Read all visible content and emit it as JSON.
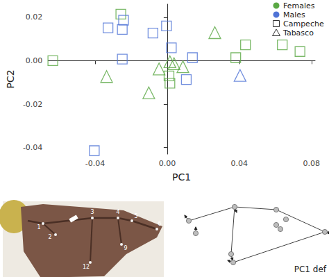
{
  "chart_data": {
    "type": "scatter",
    "x_label": "PC1",
    "y_label": "PC2",
    "xlim": [
      -0.066,
      0.082
    ],
    "xticks": [
      {
        "value": -0.04,
        "label": "-0.04"
      },
      {
        "value": 0,
        "label": "0.00"
      },
      {
        "value": 0.04,
        "label": "0.04"
      },
      {
        "value": 0.08,
        "label": "0.08"
      }
    ],
    "ylim": [
      -0.043,
      0.026
    ],
    "yticks": [
      {
        "value": -0.04,
        "label": "-0.04"
      },
      {
        "value": -0.02,
        "label": "-0.02"
      },
      {
        "value": 0,
        "label": "0.00"
      },
      {
        "value": 0.02,
        "label": "0.02"
      }
    ],
    "grid": false,
    "legend": "top-right",
    "groups": [
      {
        "name": "Females",
        "color": "#5aa844"
      },
      {
        "name": "Males",
        "color": "#4f73d6"
      }
    ],
    "shapes": [
      {
        "name": "Campeche",
        "marker": "square"
      },
      {
        "name": "Tabasco",
        "marker": "triangle"
      }
    ],
    "series": [
      {
        "group": "Females",
        "shape": "Campeche",
        "x": [
          -0.0634,
          -0.0257,
          0.001,
          0.0015,
          0.0638,
          0.0434,
          0.038,
          0.0736
        ],
        "y": [
          0.0,
          0.0214,
          -0.007,
          -0.0104,
          0.0073,
          0.0073,
          0.0014,
          0.0042
        ]
      },
      {
        "group": "Females",
        "shape": "Tabasco",
        "x": [
          -0.0336,
          -0.0102,
          -0.0045,
          0.0015,
          0.0038,
          0.0087,
          0.0264
        ],
        "y": [
          -0.0073,
          -0.0148,
          -0.0038,
          -0.0005,
          -0.0014,
          -0.0028,
          0.0129
        ]
      },
      {
        "group": "Males",
        "shape": "Campeche",
        "x": [
          -0.0328,
          -0.0242,
          -0.0249,
          -0.0249,
          -0.0079,
          -0.0004,
          0.0023,
          0.014,
          0.0106,
          -0.0404
        ],
        "y": [
          0.0151,
          0.0186,
          0.0144,
          0.0007,
          0.0127,
          0.016,
          0.0059,
          0.0014,
          -0.0087,
          -0.0414
        ]
      },
      {
        "group": "Males",
        "shape": "Tabasco",
        "x": [
          0.0404
        ],
        "y": [
          -0.0068
        ]
      }
    ]
  },
  "wing_photo": {
    "landmarks": [
      "1",
      "2",
      "3",
      "4",
      "5",
      "6",
      "9",
      "12"
    ]
  },
  "deformation": {
    "label": "PC1 def"
  }
}
